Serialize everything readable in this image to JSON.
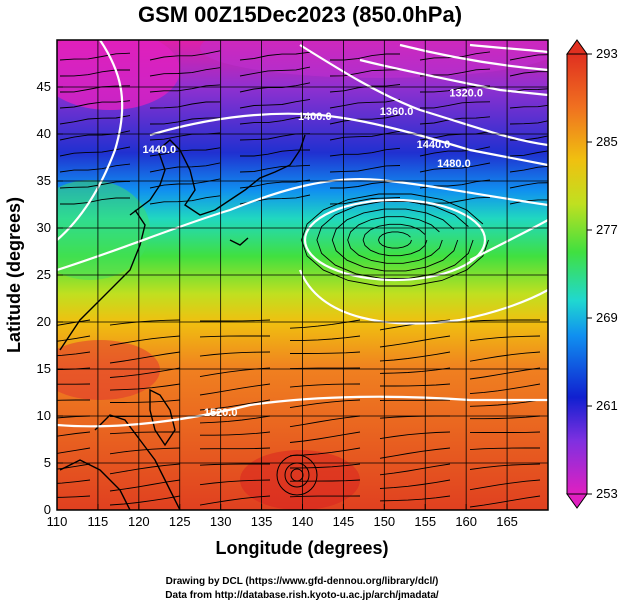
{
  "chart_data": {
    "type": "map",
    "title": "GSM 00Z15Dec2023 (850.0hPa)",
    "xlabel": "Longitude (degrees)",
    "ylabel": "Latitude  (degrees)",
    "xlim": [
      110,
      170
    ],
    "ylim": [
      0,
      50
    ],
    "xticks": [
      110,
      115,
      120,
      125,
      130,
      135,
      140,
      145,
      150,
      155,
      160,
      165
    ],
    "yticks": [
      0,
      5,
      10,
      15,
      20,
      25,
      30,
      35,
      40,
      45
    ],
    "grid": true,
    "colorbar": {
      "min": 253,
      "max": 293,
      "ticks": [
        253,
        261,
        269,
        277,
        285,
        293
      ],
      "colors": [
        "#e020c0",
        "#8030e0",
        "#1020d0",
        "#1090f0",
        "#20d8d0",
        "#40e040",
        "#c0e020",
        "#f0c010",
        "#f07020",
        "#e03020"
      ]
    },
    "contour_labels": [
      {
        "text": "1320.0",
        "lon": 160.0,
        "lat": 44.0
      },
      {
        "text": "1360.0",
        "lon": 151.5,
        "lat": 42.0
      },
      {
        "text": "1400.0",
        "lon": 141.5,
        "lat": 41.5
      },
      {
        "text": "1440.0",
        "lon": 156.0,
        "lat": 38.5
      },
      {
        "text": "1480.0",
        "lon": 158.5,
        "lat": 36.5
      },
      {
        "text": "1440.0",
        "lon": 122.5,
        "lat": 38.0
      },
      {
        "text": "1520.0",
        "lon": 130.0,
        "lat": 10.0
      }
    ]
  },
  "credits": {
    "line1": "Drawing by DCL (https://www.gfd-dennou.org/library/dcl/)",
    "line2": "Data from http://database.rish.kyoto-u.ac.jp/arch/jmadata/"
  }
}
